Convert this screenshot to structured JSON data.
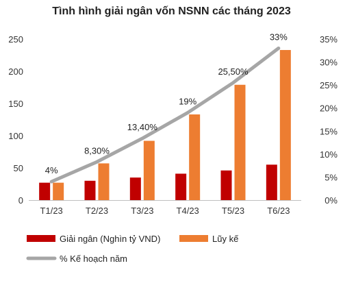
{
  "chart_data": {
    "type": "bar",
    "title": "Tình hình giải ngân vốn NSNN các tháng 2023",
    "categories": [
      "T1/23",
      "T2/23",
      "T3/23",
      "T4/23",
      "T5/23",
      "T6/23"
    ],
    "series": [
      {
        "name": "Giải ngân (Nghìn tỷ VND)",
        "type": "bar",
        "axis": "left",
        "color": "#c00000",
        "values": [
          27,
          30,
          35,
          41,
          46,
          55
        ]
      },
      {
        "name": "Lũy kế",
        "type": "bar",
        "axis": "right-scale-left",
        "color": "#ed7d31",
        "values": [
          27,
          57,
          92,
          133,
          179,
          233
        ]
      },
      {
        "name": "% Kế hoạch năm",
        "type": "line",
        "axis": "right",
        "color": "#a6a6a6",
        "values": [
          4,
          8.3,
          13.4,
          19,
          25.5,
          33
        ],
        "data_labels": [
          "4%",
          "8,30%",
          "13,40%",
          "19%",
          "25,50%",
          "33%"
        ]
      }
    ],
    "y_left": {
      "min": 0,
      "max": 250,
      "ticks": [
        "0",
        "50",
        "100",
        "150",
        "200",
        "250"
      ]
    },
    "y_right": {
      "min": 0,
      "max": 35,
      "ticks": [
        "0%",
        "5%",
        "10%",
        "15%",
        "20%",
        "25%",
        "30%",
        "35%"
      ]
    },
    "grid": false,
    "legend": "bottom"
  }
}
